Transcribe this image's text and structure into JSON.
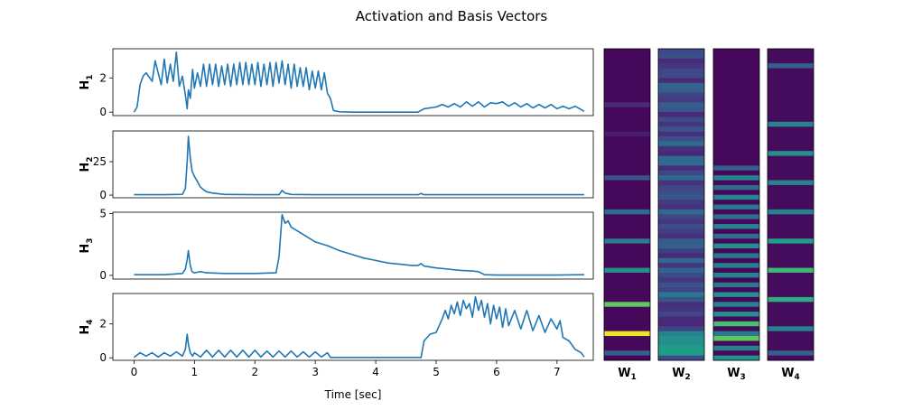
{
  "chart_data": {
    "type": "line",
    "title": "Activation and Basis Vectors",
    "xlabel": "Time [sec]",
    "xlim": [
      -0.35,
      7.6
    ],
    "xticks": [
      0,
      1,
      2,
      3,
      4,
      5,
      6,
      7
    ],
    "color": "#1f77b4",
    "series": [
      {
        "name": "H",
        "sub": "1",
        "ylim": [
          -0.2,
          3.7
        ],
        "yticks": [
          0,
          2
        ],
        "x": [
          0,
          0.05,
          0.1,
          0.15,
          0.2,
          0.3,
          0.35,
          0.45,
          0.5,
          0.55,
          0.6,
          0.65,
          0.7,
          0.75,
          0.8,
          0.85,
          0.88,
          0.9,
          0.93,
          0.97,
          1.0,
          1.05,
          1.1,
          1.15,
          1.2,
          1.25,
          1.3,
          1.35,
          1.4,
          1.45,
          1.5,
          1.55,
          1.6,
          1.65,
          1.7,
          1.75,
          1.8,
          1.85,
          1.9,
          1.95,
          2.0,
          2.05,
          2.1,
          2.15,
          2.2,
          2.25,
          2.3,
          2.35,
          2.4,
          2.45,
          2.5,
          2.55,
          2.6,
          2.65,
          2.7,
          2.75,
          2.8,
          2.85,
          2.9,
          2.95,
          3.0,
          3.05,
          3.1,
          3.15,
          3.2,
          3.25,
          3.3,
          3.4,
          3.6,
          4.0,
          4.5,
          4.7,
          4.8,
          5.0,
          5.1,
          5.2,
          5.3,
          5.4,
          5.5,
          5.6,
          5.7,
          5.8,
          5.9,
          6.0,
          6.1,
          6.2,
          6.3,
          6.4,
          6.5,
          6.6,
          6.7,
          6.8,
          6.9,
          7.0,
          7.1,
          7.2,
          7.3,
          7.45
        ],
        "values": [
          0,
          0.3,
          1.6,
          2.1,
          2.3,
          1.8,
          3.0,
          1.6,
          3.1,
          1.7,
          2.8,
          1.8,
          3.5,
          1.5,
          2.1,
          1.0,
          0.2,
          1.3,
          0.8,
          2.5,
          1.4,
          2.3,
          1.5,
          2.8,
          1.5,
          2.8,
          1.6,
          2.8,
          1.5,
          2.7,
          1.6,
          2.8,
          1.5,
          2.8,
          1.6,
          2.9,
          1.6,
          2.9,
          1.6,
          2.8,
          1.6,
          2.9,
          1.5,
          2.8,
          1.6,
          2.9,
          1.5,
          2.9,
          1.7,
          3.0,
          1.6,
          2.8,
          1.4,
          2.8,
          1.5,
          2.6,
          1.5,
          2.6,
          1.3,
          2.4,
          1.4,
          2.4,
          1.3,
          2.3,
          1.1,
          0.8,
          0.1,
          0.02,
          0,
          0,
          0,
          0,
          0.2,
          0.3,
          0.45,
          0.3,
          0.5,
          0.3,
          0.6,
          0.35,
          0.6,
          0.3,
          0.55,
          0.5,
          0.6,
          0.35,
          0.55,
          0.3,
          0.5,
          0.25,
          0.45,
          0.25,
          0.45,
          0.2,
          0.35,
          0.2,
          0.35,
          0.05
        ]
      },
      {
        "name": "H",
        "sub": "2",
        "ylim": [
          -2,
          48
        ],
        "yticks": [
          0,
          25
        ],
        "x": [
          0,
          0.5,
          0.8,
          0.85,
          0.88,
          0.9,
          0.93,
          0.96,
          1.0,
          1.05,
          1.1,
          1.15,
          1.2,
          1.3,
          1.5,
          2.0,
          2.4,
          2.45,
          2.5,
          2.6,
          3.0,
          4.7,
          4.75,
          4.8,
          5.5,
          6.5,
          7.45
        ],
        "values": [
          0.3,
          0.3,
          0.6,
          5,
          25,
          44,
          28,
          18,
          14,
          10,
          6,
          4,
          2.5,
          1.5,
          0.5,
          0.3,
          0.3,
          3.5,
          1.5,
          0.5,
          0.3,
          0.3,
          1.2,
          0.3,
          0.3,
          0.3,
          0.3
        ]
      },
      {
        "name": "H",
        "sub": "3",
        "ylim": [
          -0.3,
          5.1
        ],
        "yticks": [
          0,
          5
        ],
        "x": [
          0,
          0.5,
          0.8,
          0.85,
          0.88,
          0.9,
          0.93,
          0.96,
          1.0,
          1.1,
          1.2,
          1.5,
          2.0,
          2.35,
          2.4,
          2.45,
          2.5,
          2.55,
          2.6,
          2.7,
          2.8,
          2.9,
          3.0,
          3.2,
          3.4,
          3.6,
          3.8,
          4.0,
          4.2,
          4.4,
          4.6,
          4.7,
          4.75,
          4.8,
          5.0,
          5.2,
          5.4,
          5.6,
          5.7,
          5.8,
          6.0,
          6.5,
          7.0,
          7.45
        ],
        "values": [
          0.05,
          0.05,
          0.15,
          0.5,
          1.3,
          2.0,
          0.8,
          0.3,
          0.2,
          0.3,
          0.2,
          0.15,
          0.15,
          0.2,
          1.5,
          4.9,
          4.2,
          4.4,
          3.9,
          3.6,
          3.3,
          3.0,
          2.7,
          2.4,
          2.0,
          1.7,
          1.4,
          1.2,
          1.0,
          0.9,
          0.8,
          0.8,
          0.95,
          0.75,
          0.6,
          0.5,
          0.4,
          0.35,
          0.3,
          0.05,
          0.02,
          0.02,
          0.02,
          0.05
        ]
      },
      {
        "name": "H",
        "sub": "4",
        "ylim": [
          -0.15,
          3.8
        ],
        "yticks": [
          0,
          2
        ],
        "x": [
          0,
          0.1,
          0.2,
          0.3,
          0.4,
          0.5,
          0.6,
          0.7,
          0.8,
          0.85,
          0.88,
          0.9,
          0.93,
          0.97,
          1.0,
          1.1,
          1.2,
          1.3,
          1.4,
          1.5,
          1.6,
          1.7,
          1.8,
          1.9,
          2.0,
          2.1,
          2.2,
          2.3,
          2.4,
          2.5,
          2.6,
          2.7,
          2.8,
          2.9,
          3.0,
          3.1,
          3.2,
          3.25,
          3.3,
          3.5,
          4.0,
          4.5,
          4.75,
          4.8,
          4.9,
          5.0,
          5.05,
          5.1,
          5.15,
          5.2,
          5.25,
          5.3,
          5.35,
          5.4,
          5.45,
          5.5,
          5.55,
          5.6,
          5.65,
          5.7,
          5.75,
          5.8,
          5.85,
          5.9,
          5.95,
          6.0,
          6.05,
          6.1,
          6.15,
          6.2,
          6.3,
          6.4,
          6.5,
          6.6,
          6.7,
          6.8,
          6.9,
          7.0,
          7.05,
          7.1,
          7.2,
          7.3,
          7.4,
          7.45
        ],
        "values": [
          0.02,
          0.3,
          0.1,
          0.3,
          0.05,
          0.3,
          0.1,
          0.35,
          0.1,
          0.5,
          1.4,
          0.8,
          0.3,
          0.1,
          0.3,
          0.05,
          0.45,
          0.05,
          0.45,
          0.05,
          0.45,
          0.05,
          0.45,
          0.05,
          0.45,
          0.05,
          0.4,
          0.05,
          0.4,
          0.05,
          0.4,
          0.05,
          0.35,
          0.05,
          0.35,
          0.05,
          0.3,
          0.02,
          0.02,
          0.02,
          0.02,
          0.02,
          0.02,
          1.0,
          1.4,
          1.5,
          1.9,
          2.3,
          2.8,
          2.3,
          3.1,
          2.6,
          3.3,
          2.5,
          3.4,
          2.9,
          3.2,
          2.4,
          3.6,
          2.8,
          3.4,
          2.4,
          3.2,
          2.0,
          3.1,
          2.3,
          3.0,
          1.8,
          2.9,
          1.9,
          2.8,
          1.7,
          2.8,
          1.6,
          2.5,
          1.5,
          2.3,
          1.7,
          2.2,
          1.2,
          1.0,
          0.5,
          0.3,
          0.05
        ]
      }
    ],
    "basis_vectors": [
      {
        "name": "W",
        "sub": "1",
        "rows": 64,
        "background": 0.02,
        "bands": [
          [
            11,
            0.12
          ],
          [
            17,
            0.08
          ],
          [
            26,
            0.25
          ],
          [
            33,
            0.35
          ],
          [
            39,
            0.42
          ],
          [
            45,
            0.5
          ],
          [
            52,
            0.75
          ],
          [
            58,
            0.97
          ],
          [
            62,
            0.3
          ]
        ]
      },
      {
        "name": "W",
        "sub": "2",
        "rows": 64,
        "background": 0.1,
        "noise": 0.25,
        "bands": [
          [
            8,
            0.3
          ],
          [
            19,
            0.35
          ],
          [
            26,
            0.3
          ],
          [
            40,
            0.3
          ],
          [
            50,
            0.4
          ],
          [
            58,
            0.45
          ],
          [
            59,
            0.5
          ],
          [
            60,
            0.5
          ],
          [
            61,
            0.55
          ],
          [
            62,
            0.55
          ]
        ]
      },
      {
        "name": "W",
        "sub": "3",
        "rows": 64,
        "background": 0.02,
        "bands": [
          [
            24,
            0.3
          ],
          [
            26,
            0.45
          ],
          [
            28,
            0.35
          ],
          [
            30,
            0.45
          ],
          [
            32,
            0.4
          ],
          [
            34,
            0.35
          ],
          [
            36,
            0.45
          ],
          [
            38,
            0.35
          ],
          [
            40,
            0.5
          ],
          [
            42,
            0.4
          ],
          [
            44,
            0.45
          ],
          [
            46,
            0.45
          ],
          [
            48,
            0.4
          ],
          [
            50,
            0.5
          ],
          [
            52,
            0.45
          ],
          [
            54,
            0.5
          ],
          [
            56,
            0.7
          ],
          [
            58,
            0.4
          ],
          [
            59,
            0.75
          ],
          [
            61,
            0.45
          ],
          [
            63,
            0.5
          ]
        ]
      },
      {
        "name": "W",
        "sub": "4",
        "rows": 64,
        "background": 0.03,
        "bands": [
          [
            3,
            0.3
          ],
          [
            15,
            0.45
          ],
          [
            21,
            0.5
          ],
          [
            27,
            0.45
          ],
          [
            33,
            0.45
          ],
          [
            39,
            0.55
          ],
          [
            45,
            0.68
          ],
          [
            51,
            0.62
          ],
          [
            57,
            0.45
          ],
          [
            62,
            0.3
          ]
        ]
      }
    ]
  }
}
